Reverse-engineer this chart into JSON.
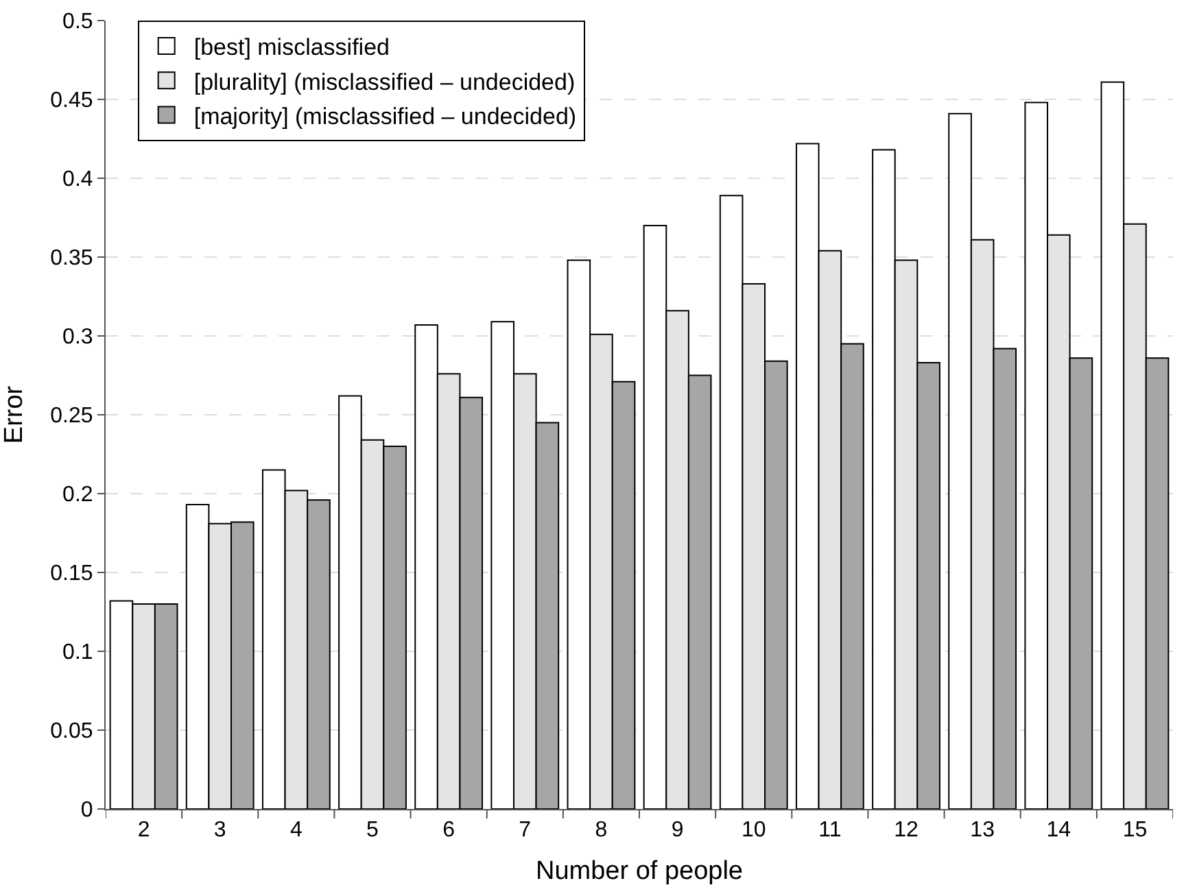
{
  "chart_data": {
    "type": "bar",
    "xlabel": "Number of people",
    "ylabel": "Error",
    "categories": [
      "2",
      "3",
      "4",
      "5",
      "6",
      "7",
      "8",
      "9",
      "10",
      "11",
      "12",
      "13",
      "14",
      "15"
    ],
    "series": [
      {
        "name": "[best] misclassified",
        "color": "#ffffff",
        "values": [
          0.132,
          0.193,
          0.215,
          0.262,
          0.307,
          0.309,
          0.348,
          0.37,
          0.389,
          0.422,
          0.418,
          0.441,
          0.448,
          0.461
        ]
      },
      {
        "name": "[plurality] (misclassified – undecided)",
        "color": "#e4e4e4",
        "values": [
          0.13,
          0.181,
          0.202,
          0.234,
          0.276,
          0.276,
          0.301,
          0.316,
          0.333,
          0.354,
          0.348,
          0.361,
          0.364,
          0.371
        ]
      },
      {
        "name": "[majority] (misclassified – undecided)",
        "color": "#a6a6a6",
        "values": [
          0.13,
          0.182,
          0.196,
          0.23,
          0.261,
          0.245,
          0.271,
          0.275,
          0.284,
          0.295,
          0.283,
          0.292,
          0.286,
          0.286
        ]
      }
    ],
    "ylim": [
      0,
      0.5
    ],
    "yticks": [
      0,
      0.05,
      0.1,
      0.15,
      0.2,
      0.25,
      0.3,
      0.35,
      0.4,
      0.45,
      0.5
    ],
    "grid": "y",
    "legend": "top left"
  }
}
